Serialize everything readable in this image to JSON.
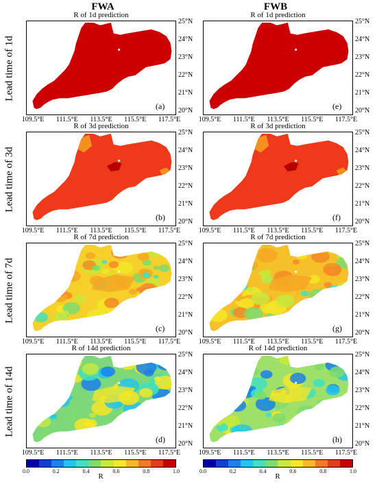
{
  "columns": [
    "FWA",
    "FWB"
  ],
  "rows": [
    {
      "label": "Lead time of 1d",
      "title": "R of 1d prediction",
      "panels": [
        "(a)",
        "(e)"
      ],
      "values": [
        [
          0.95,
          0.95
        ]
      ],
      "dominant": [
        "#cc0000",
        "#cc0000"
      ]
    },
    {
      "label": "Lead time of 3d",
      "title": "R of 3d prediction",
      "panels": [
        "(b)",
        "(f)"
      ],
      "dominant": [
        "#ee3a1a",
        "#ee3a1a"
      ]
    },
    {
      "label": "Lead time of 7d",
      "title": "R of 7d prediction",
      "panels": [
        "(c)",
        "(g)"
      ],
      "dominant": [
        "#f5d02a",
        "#f5c028"
      ]
    },
    {
      "label": "Lead time of 14d",
      "title": "R of 14d prediction",
      "panels": [
        "(d)",
        "(h)"
      ],
      "dominant": [
        "#7dd87a",
        "#9fe06a"
      ]
    }
  ],
  "lat_labels": [
    "25°N",
    "24°N",
    "23°N",
    "22°N",
    "21°N",
    "20°N"
  ],
  "lon_labels": [
    "109.5°E",
    "111.5°E",
    "113.5°E",
    "115.5°E",
    "117.5°E"
  ],
  "colorbar": {
    "label": "R",
    "ticks": [
      "0.0",
      "0.2",
      "0.4",
      "0.6",
      "0.8",
      "1.0"
    ],
    "colors": [
      "#0000aa",
      "#0d3fd6",
      "#1a80ea",
      "#22c4ee",
      "#40e0c0",
      "#7ddc6e",
      "#c8e83a",
      "#f5e626",
      "#f5b825",
      "#f5782a",
      "#e63c1c",
      "#cc0000"
    ]
  }
}
